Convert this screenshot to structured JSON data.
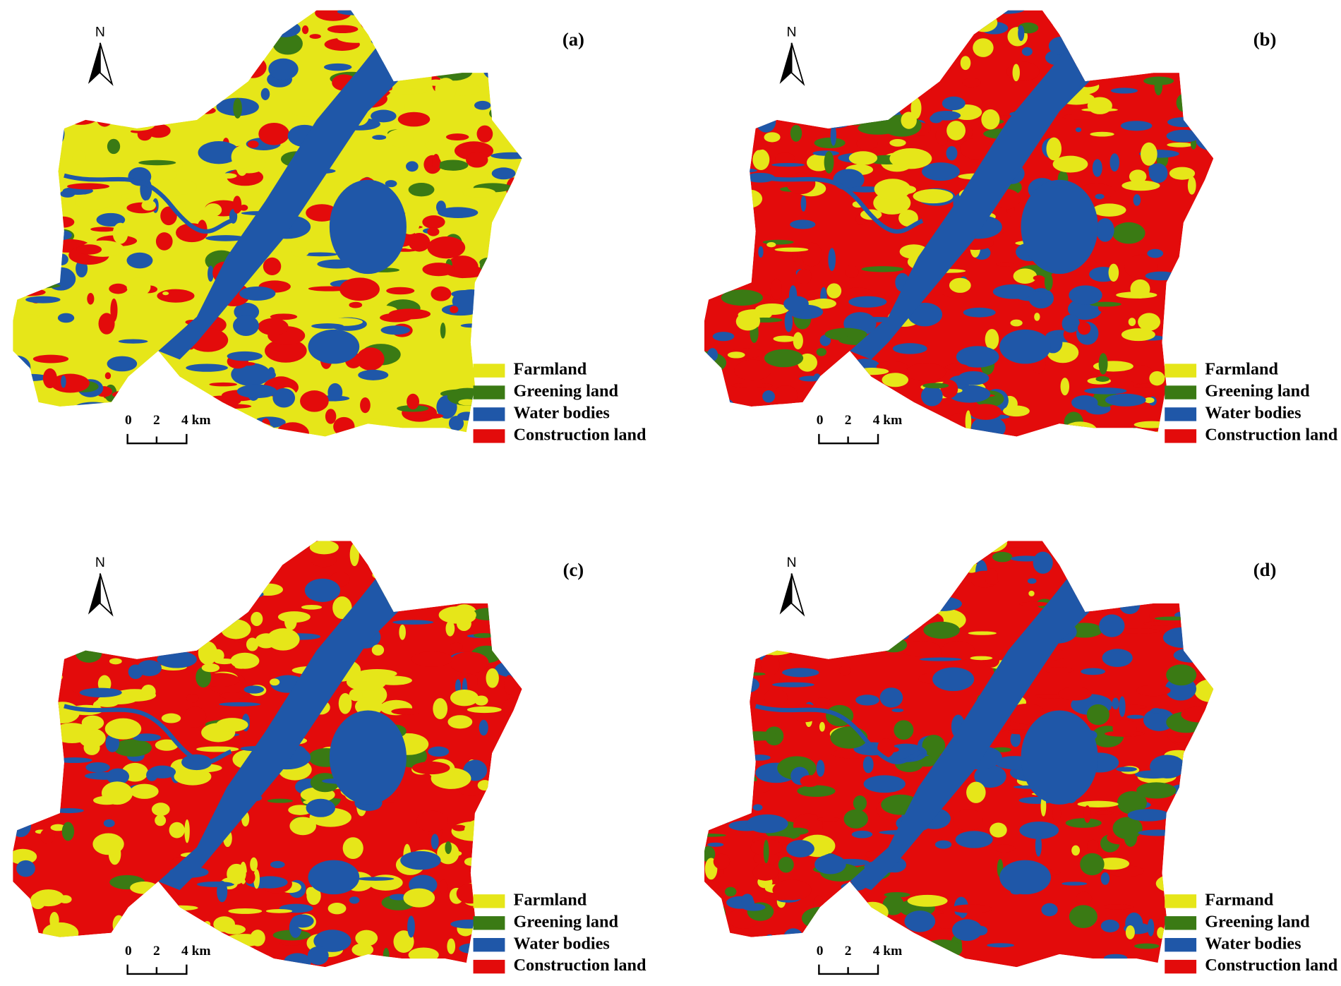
{
  "panels": [
    {
      "label": "(a)",
      "north": "N",
      "scale": [
        "0",
        "2",
        "4 km"
      ],
      "legend": [
        {
          "label": "Farmland",
          "color": "#e6e619"
        },
        {
          "label": "Greening land",
          "color": "#3a7a14"
        },
        {
          "label": "Water bodies",
          "color": "#1f57a8"
        },
        {
          "label": "Construction land",
          "color": "#e30b0b"
        }
      ]
    },
    {
      "label": "(b)",
      "north": "N",
      "scale": [
        "0",
        "2",
        "4 km"
      ],
      "legend": [
        {
          "label": "Farmland",
          "color": "#e6e619"
        },
        {
          "label": "Greening land",
          "color": "#3a7a14"
        },
        {
          "label": "Water bodies",
          "color": "#1f57a8"
        },
        {
          "label": "Construction land",
          "color": "#e30b0b"
        }
      ]
    },
    {
      "label": "(c)",
      "north": "N",
      "scale": [
        "0",
        "2",
        "4 km"
      ],
      "legend": [
        {
          "label": "Farmland",
          "color": "#e6e619"
        },
        {
          "label": "Greening land",
          "color": "#3a7a14"
        },
        {
          "label": "Water bodies",
          "color": "#1f57a8"
        },
        {
          "label": "Construction land",
          "color": "#e30b0b"
        }
      ]
    },
    {
      "label": "(d)",
      "north": "N",
      "scale": [
        "0",
        "2",
        "4 km"
      ],
      "legend": [
        {
          "label": "Farmand",
          "color": "#e6e619"
        },
        {
          "label": "Greening land",
          "color": "#3a7a14"
        },
        {
          "label": "Water bodies",
          "color": "#1f57a8"
        },
        {
          "label": "Construction land",
          "color": "#e30b0b"
        }
      ]
    }
  ]
}
